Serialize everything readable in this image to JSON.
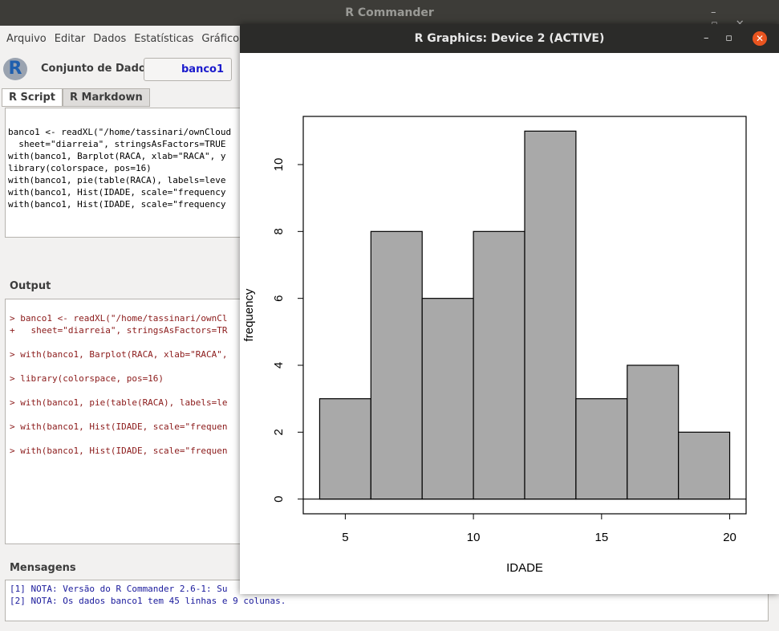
{
  "window": {
    "title": "R Commander",
    "menu": [
      "Arquivo",
      "Editar",
      "Dados",
      "Estatísticas",
      "Gráfico"
    ],
    "dataset_label": "Conjunto de Dados:",
    "dataset": "banco1",
    "tabs": [
      "R Script",
      "R Markdown"
    ],
    "script": [
      "banco1 <- readXL(\"/home/tassinari/ownCloud",
      "  sheet=\"diarreia\", stringsAsFactors=TRUE",
      "with(banco1, Barplot(RACA, xlab=\"RACA\", y",
      "library(colorspace, pos=16)",
      "with(banco1, pie(table(RACA), labels=leve",
      "with(banco1, Hist(IDADE, scale=\"frequency",
      "with(banco1, Hist(IDADE, scale=\"frequency"
    ],
    "output_label": "Output",
    "output": [
      [
        "> banco1 <- readXL(\"/home/tassinari/ownCl",
        "+   sheet=\"diarreia\", stringsAsFactors=TR"
      ],
      [
        "> with(banco1, Barplot(RACA, xlab=\"RACA\","
      ],
      [
        "> library(colorspace, pos=16)"
      ],
      [
        "> with(banco1, pie(table(RACA), labels=le"
      ],
      [
        "> with(banco1, Hist(IDADE, scale=\"frequen"
      ],
      [
        "> with(banco1, Hist(IDADE, scale=\"frequen"
      ]
    ],
    "messages_label": "Mensagens",
    "messages": [
      "[1] NOTA: Versão do R Commander 2.6-1: Su",
      "[2] NOTA: Os dados banco1 tem 45 linhas e 9 colunas."
    ]
  },
  "graphics_window": {
    "title": "R Graphics: Device 2 (ACTIVE)"
  },
  "chart_data": {
    "type": "histogram",
    "xlabel": "IDADE",
    "ylabel": "frequency",
    "bins": [
      4,
      6,
      8,
      10,
      12,
      14,
      16,
      18,
      20
    ],
    "values": [
      3,
      8,
      6,
      8,
      11,
      3,
      4,
      2
    ],
    "color": "#a9a9a9",
    "xlim": [
      3.36,
      20.64
    ],
    "xticks": [
      5,
      10,
      15,
      20
    ],
    "ylim": [
      -0.44,
      11.44
    ],
    "yticks": [
      0,
      2,
      4,
      6,
      8,
      10
    ]
  }
}
